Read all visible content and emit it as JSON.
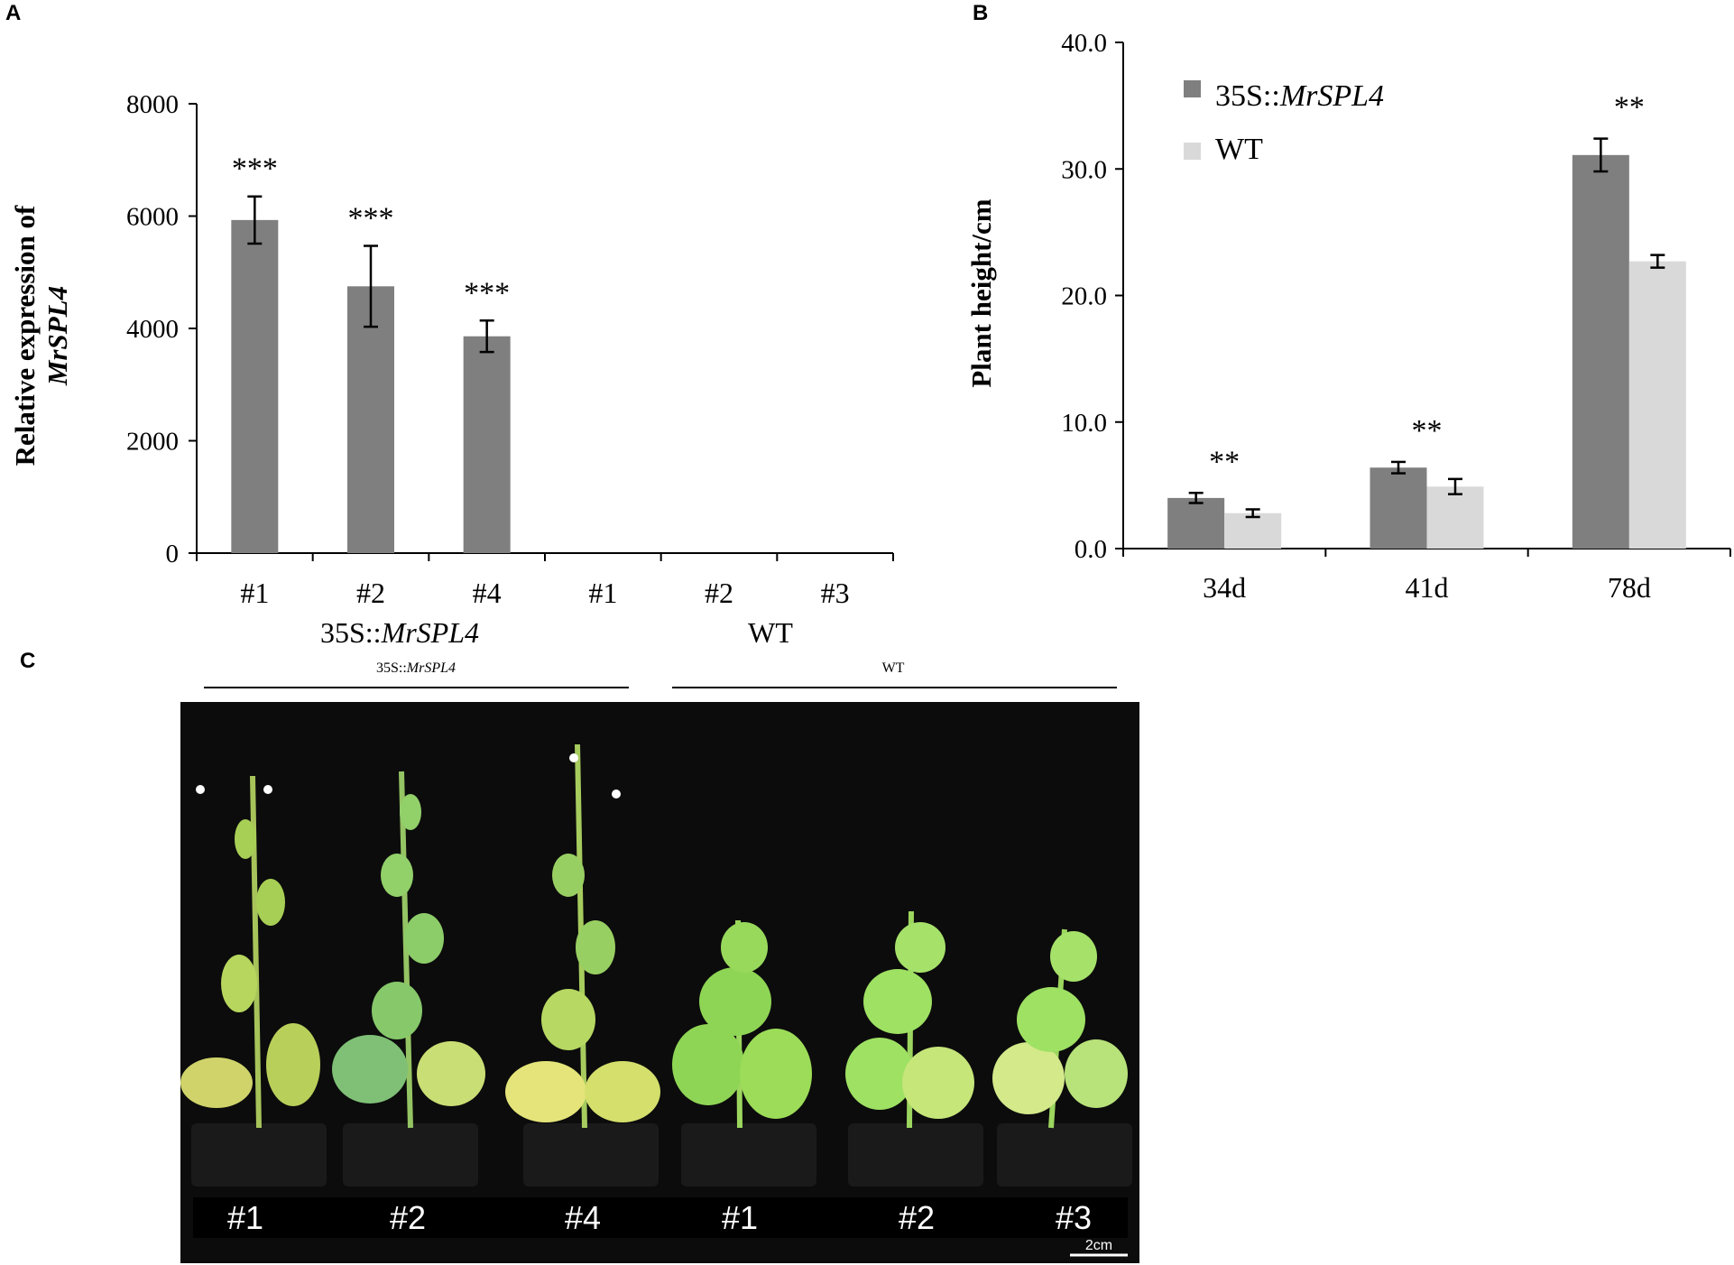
{
  "panels": {
    "a": "A",
    "b": "B",
    "c": "C"
  },
  "chart_data": [
    {
      "panel": "A",
      "type": "bar",
      "ylabel_line1": "Relative expression of",
      "ylabel_line2": "MrSPL4",
      "ylim": [
        0,
        8000
      ],
      "yticks": [
        "0",
        "2000",
        "4000",
        "6000",
        "8000"
      ],
      "categories": [
        "#1",
        "#2",
        "#4",
        "#1",
        "#2",
        "#3"
      ],
      "groups": [
        {
          "label_prefix": "35S::",
          "label_italic": "MrSPL4",
          "count": 3
        },
        {
          "label_prefix": "WT",
          "label_italic": "",
          "count": 3
        }
      ],
      "values": [
        5930,
        4750,
        3860,
        0,
        0,
        0
      ],
      "errors": [
        420,
        720,
        280,
        0,
        0,
        0
      ],
      "significance": [
        "***",
        "***",
        "***",
        "",
        "",
        ""
      ],
      "bar_color": "#7f7f7f"
    },
    {
      "panel": "B",
      "type": "bar",
      "ylabel": "Plant height/cm",
      "ylim": [
        0,
        40
      ],
      "yticks": [
        "0.0",
        "10.0",
        "20.0",
        "30.0",
        "40.0"
      ],
      "categories": [
        "34d",
        "41d",
        "78d"
      ],
      "series": [
        {
          "name_prefix": "35S::",
          "name_italic": "MrSPL4",
          "values": [
            4.0,
            6.4,
            31.1
          ],
          "errors": [
            0.4,
            0.45,
            1.3
          ],
          "color": "#7f7f7f"
        },
        {
          "name_prefix": "WT",
          "name_italic": "",
          "values": [
            2.8,
            4.9,
            22.7
          ],
          "errors": [
            0.3,
            0.6,
            0.5
          ],
          "color": "#d9d9d9"
        }
      ],
      "significance": [
        "**",
        "**",
        "**"
      ],
      "legend": "top-left"
    }
  ],
  "photo": {
    "group_labels": [
      {
        "prefix": "35S::",
        "italic": "MrSPL4"
      },
      {
        "prefix": "WT",
        "italic": ""
      }
    ],
    "plant_labels": [
      "#1",
      "#2",
      "#4",
      "#1",
      "#2",
      "#3"
    ],
    "scale_bar": "2cm"
  }
}
